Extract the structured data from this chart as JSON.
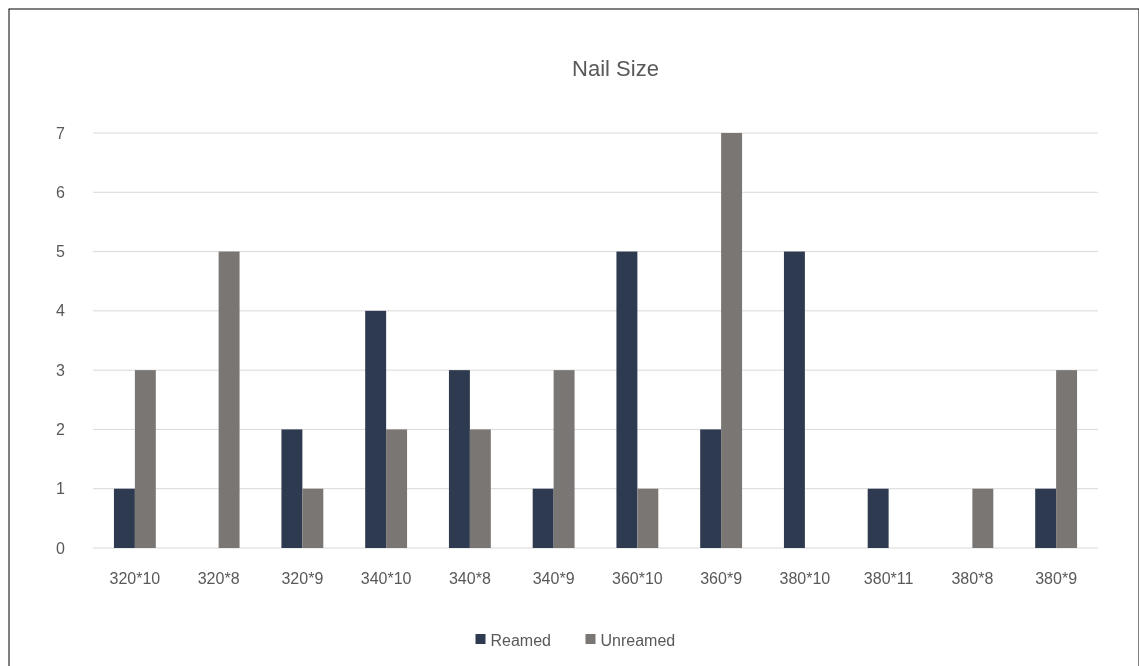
{
  "chart_data": {
    "type": "bar",
    "title": "Nail Size",
    "categories": [
      "320*10",
      "320*8",
      "320*9",
      "340*10",
      "340*8",
      "340*9",
      "360*10",
      "360*9",
      "380*10",
      "380*11",
      "380*8",
      "380*9"
    ],
    "series": [
      {
        "name": "Reamed",
        "color": "#2e3a4f",
        "values": [
          1,
          0,
          2,
          4,
          3,
          1,
          5,
          2,
          5,
          1,
          0,
          1
        ]
      },
      {
        "name": "Unreamed",
        "color": "#7a7674",
        "values": [
          3,
          5,
          1,
          2,
          2,
          3,
          1,
          7,
          0,
          0,
          1,
          3
        ]
      }
    ],
    "ylim": [
      0,
      7
    ],
    "yticks": [
      0,
      1,
      2,
      3,
      4,
      5,
      6,
      7
    ],
    "grid": "y",
    "legend": "bottom"
  }
}
